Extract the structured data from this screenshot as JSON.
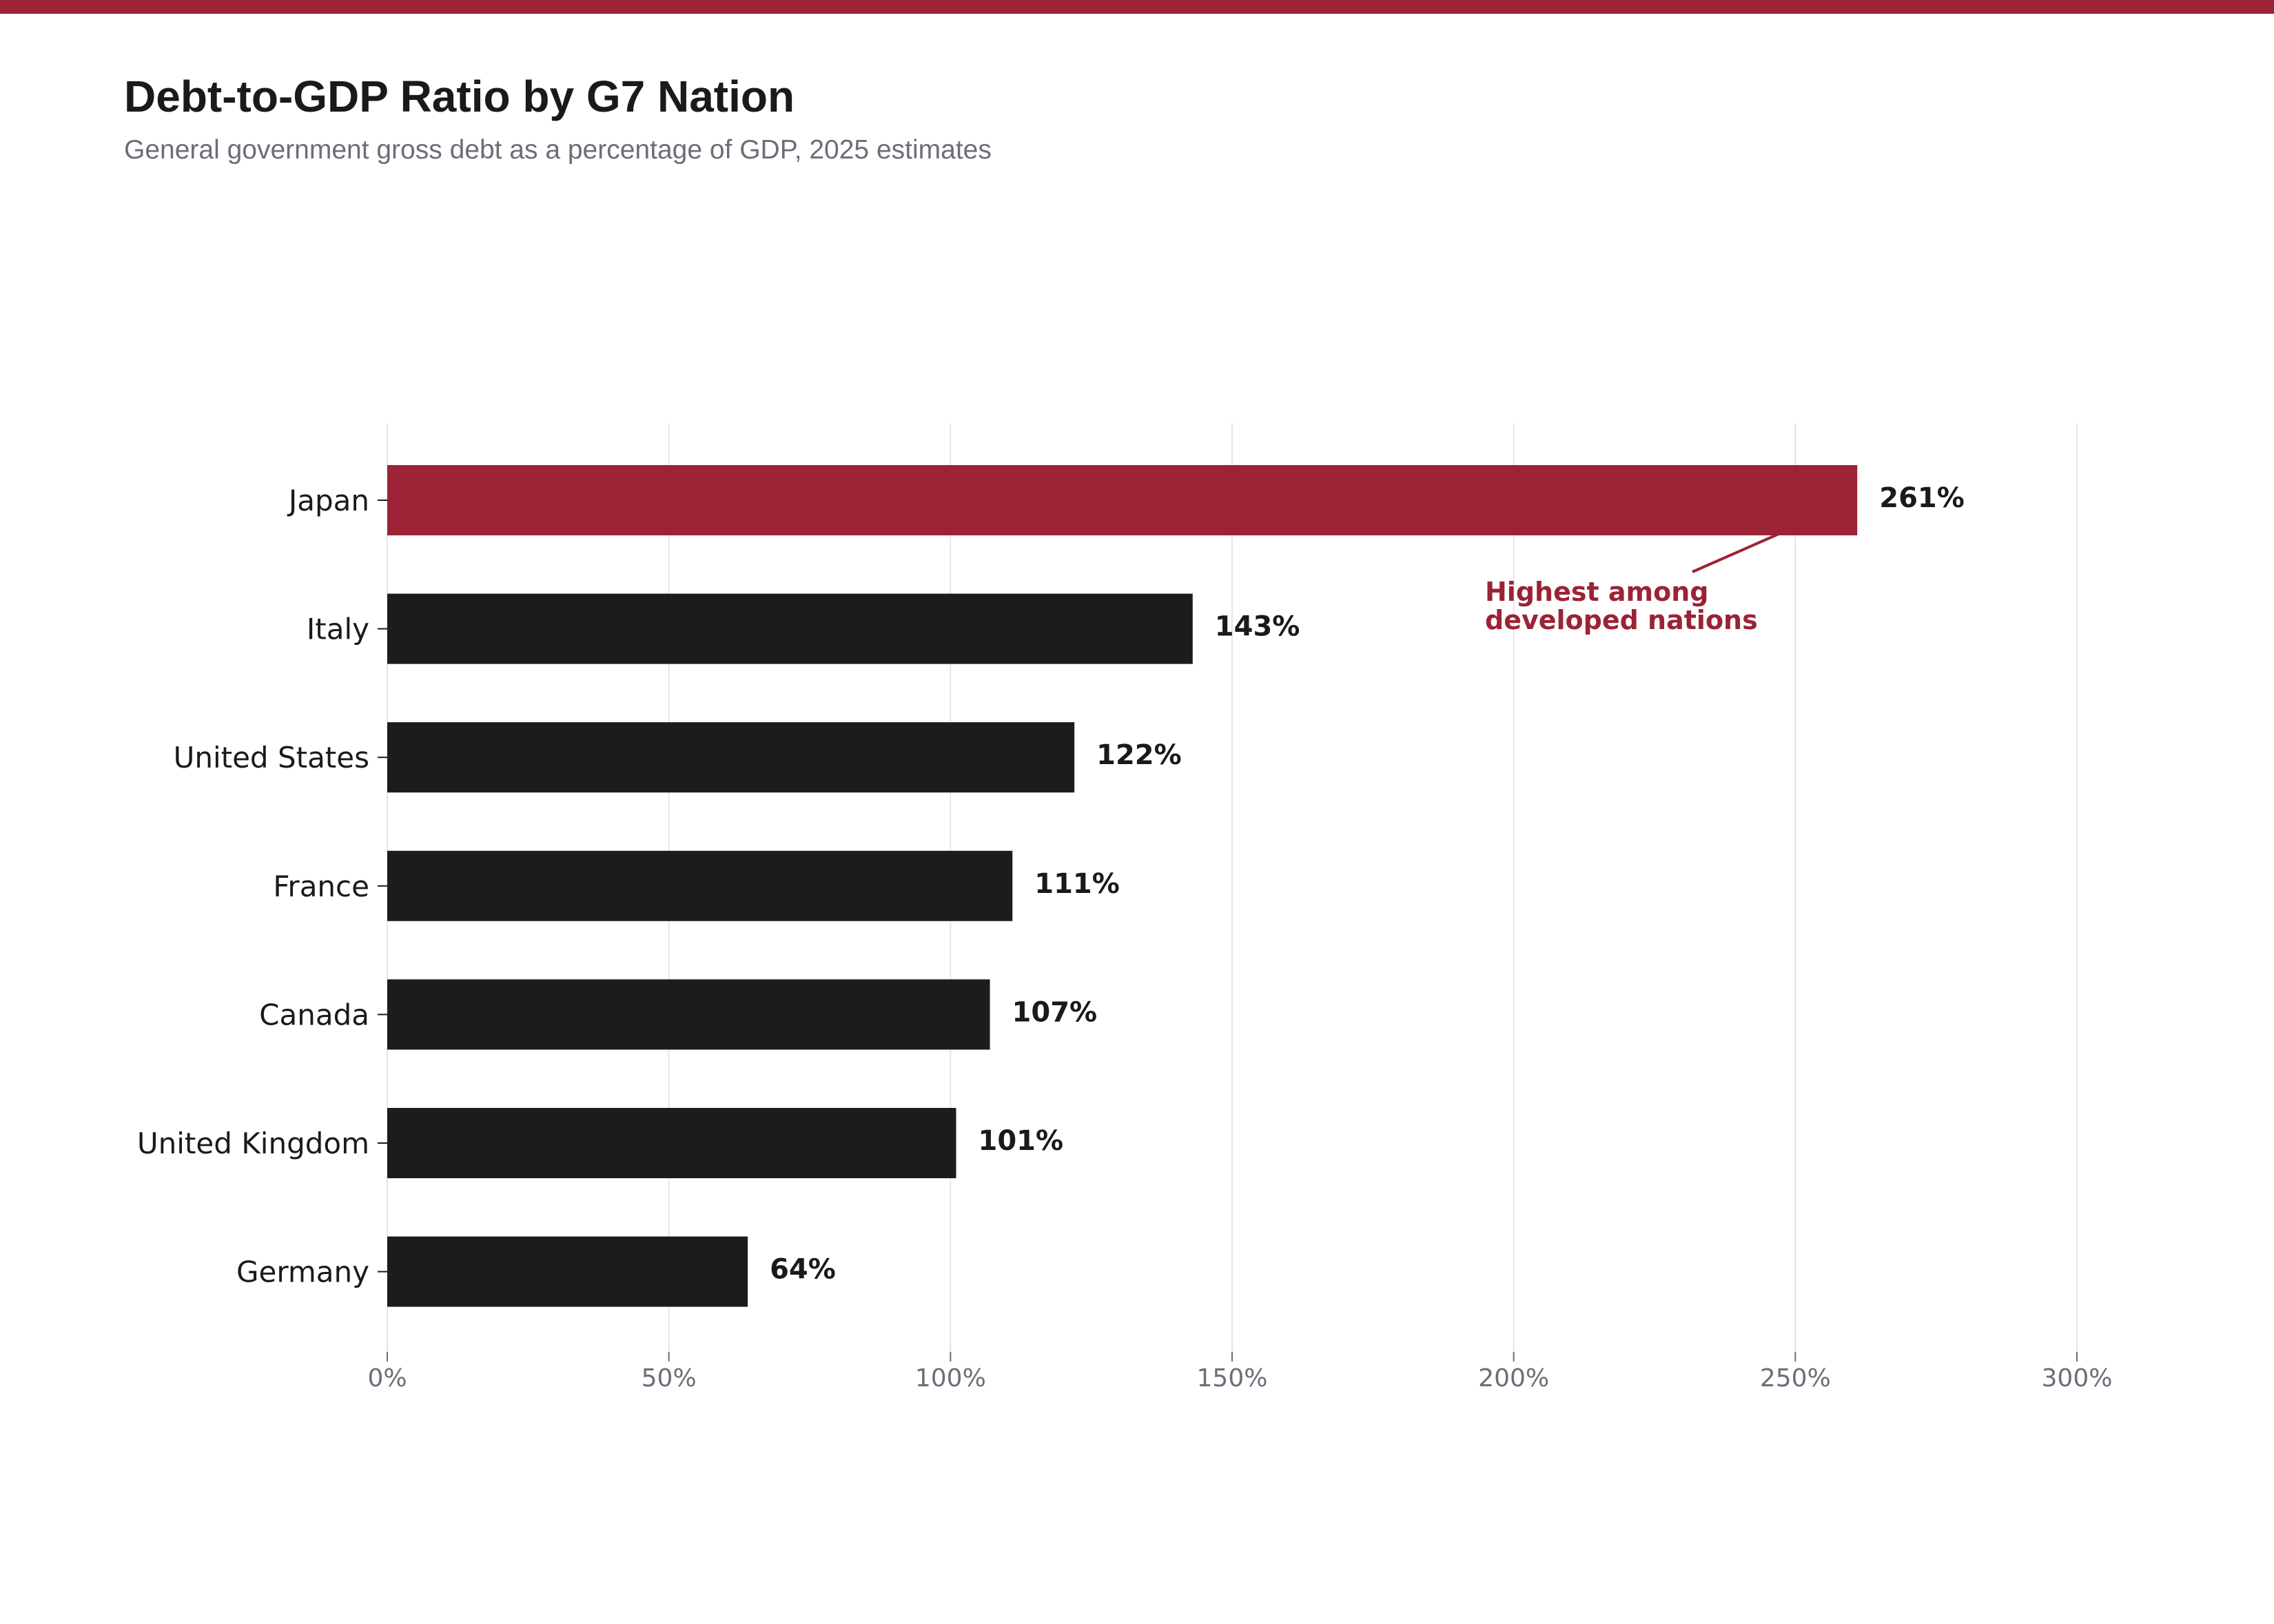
{
  "chart_data": {
    "type": "bar",
    "orientation": "horizontal",
    "title": "Debt-to-GDP Ratio by G7 Nation",
    "subtitle": "General government gross debt as a percentage of GDP, 2025 estimates",
    "categories": [
      "Japan",
      "Italy",
      "United States",
      "France",
      "Canada",
      "United Kingdom",
      "Germany"
    ],
    "values": [
      261,
      143,
      122,
      111,
      107,
      101,
      64
    ],
    "value_labels": [
      "261%",
      "143%",
      "122%",
      "111%",
      "107%",
      "101%",
      "64%"
    ],
    "xlabel": "",
    "ylabel": "",
    "xlim": [
      0,
      300
    ],
    "x_ticks": [
      0,
      50,
      100,
      150,
      200,
      250,
      300
    ],
    "x_tick_labels": [
      "0%",
      "50%",
      "100%",
      "150%",
      "200%",
      "250%",
      "300%"
    ],
    "grid": "vertical",
    "legend": "none",
    "highlight_category": "Japan",
    "annotation": {
      "target": "Japan",
      "lines": [
        "Highest among",
        "developed nations"
      ]
    }
  },
  "colors": {
    "accent": "#9b2335",
    "bar": "#1c1c1c",
    "title": "#1a1a1a",
    "subtitle": "#6b6e78",
    "tick": "#6b6e78",
    "label": "#1a1a1a",
    "grid": "#e6e6e6"
  }
}
